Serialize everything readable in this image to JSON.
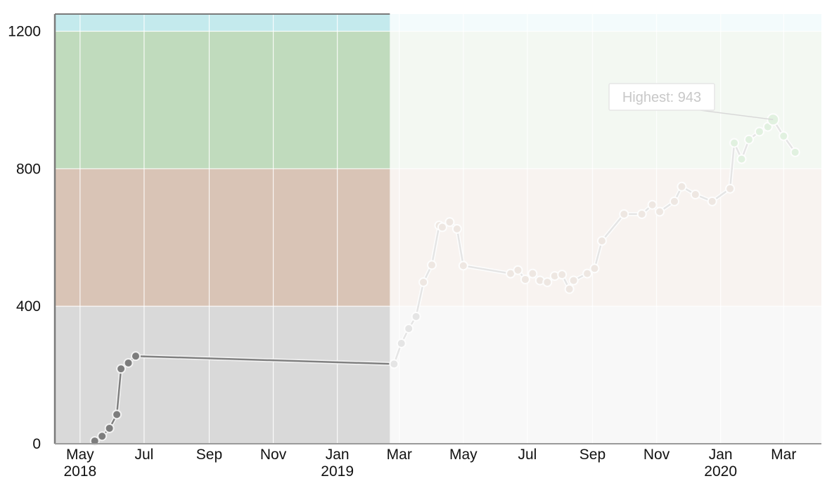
{
  "chart_data": {
    "type": "line",
    "ylim": [
      0,
      1200
    ],
    "y_ticks": [
      0,
      400,
      800,
      1200
    ],
    "x_ticks": [
      {
        "date": "2018-05-01",
        "label": "May",
        "sublabel": "2018"
      },
      {
        "date": "2018-07-01",
        "label": "Jul",
        "sublabel": ""
      },
      {
        "date": "2018-09-01",
        "label": "Sep",
        "sublabel": ""
      },
      {
        "date": "2018-11-01",
        "label": "Nov",
        "sublabel": ""
      },
      {
        "date": "2019-01-01",
        "label": "Jan",
        "sublabel": "2019"
      },
      {
        "date": "2019-03-01",
        "label": "Mar",
        "sublabel": ""
      },
      {
        "date": "2019-05-01",
        "label": "May",
        "sublabel": ""
      },
      {
        "date": "2019-07-01",
        "label": "Jul",
        "sublabel": ""
      },
      {
        "date": "2019-09-01",
        "label": "Sep",
        "sublabel": ""
      },
      {
        "date": "2019-11-01",
        "label": "Nov",
        "sublabel": ""
      },
      {
        "date": "2020-01-01",
        "label": "Jan",
        "sublabel": "2020"
      },
      {
        "date": "2020-03-01",
        "label": "Mar",
        "sublabel": ""
      }
    ],
    "x_range": [
      "2018-04-07",
      "2020-04-06"
    ],
    "bands": [
      {
        "from": 0,
        "to": 400,
        "color": "#d9d9d9"
      },
      {
        "from": 400,
        "to": 800,
        "color": "#d9c4b6"
      },
      {
        "from": 800,
        "to": 1200,
        "color": "#c0dbbd"
      },
      {
        "from": 1200,
        "to": 1250,
        "color": "#c4eaed"
      }
    ],
    "highlight_end": "2019-02-20",
    "tooltip": {
      "label": "Highest: 943"
    },
    "series": [
      {
        "x": [
          "2018-05-15",
          "2018-05-22",
          "2018-05-29",
          "2018-06-05",
          "2018-06-09",
          "2018-06-16",
          "2018-06-23",
          "2019-02-24",
          "2019-03-03",
          "2019-03-10",
          "2019-03-17",
          "2019-03-24",
          "2019-04-01",
          "2019-04-08",
          "2019-04-11",
          "2019-04-18",
          "2019-04-25",
          "2019-05-01",
          "2019-06-15",
          "2019-06-22",
          "2019-06-29",
          "2019-07-06",
          "2019-07-13",
          "2019-07-20",
          "2019-07-27",
          "2019-08-03",
          "2019-08-10",
          "2019-08-14",
          "2019-08-27",
          "2019-09-03",
          "2019-09-10",
          "2019-10-01",
          "2019-10-18",
          "2019-10-28",
          "2019-11-04",
          "2019-11-18",
          "2019-11-25",
          "2019-12-08",
          "2019-12-24",
          "2020-01-10",
          "2020-01-14",
          "2020-01-21",
          "2020-01-28",
          "2020-02-07",
          "2020-02-15",
          "2020-02-20",
          "2020-03-01",
          "2020-03-12"
        ],
        "y": [
          8,
          22,
          45,
          85,
          218,
          235,
          255,
          232,
          292,
          335,
          370,
          470,
          520,
          635,
          630,
          645,
          625,
          518,
          495,
          505,
          478,
          495,
          475,
          470,
          488,
          492,
          450,
          475,
          495,
          510,
          590,
          668,
          668,
          695,
          675,
          705,
          748,
          725,
          705,
          742,
          875,
          828,
          885,
          908,
          922,
          943,
          895,
          848
        ]
      }
    ]
  }
}
